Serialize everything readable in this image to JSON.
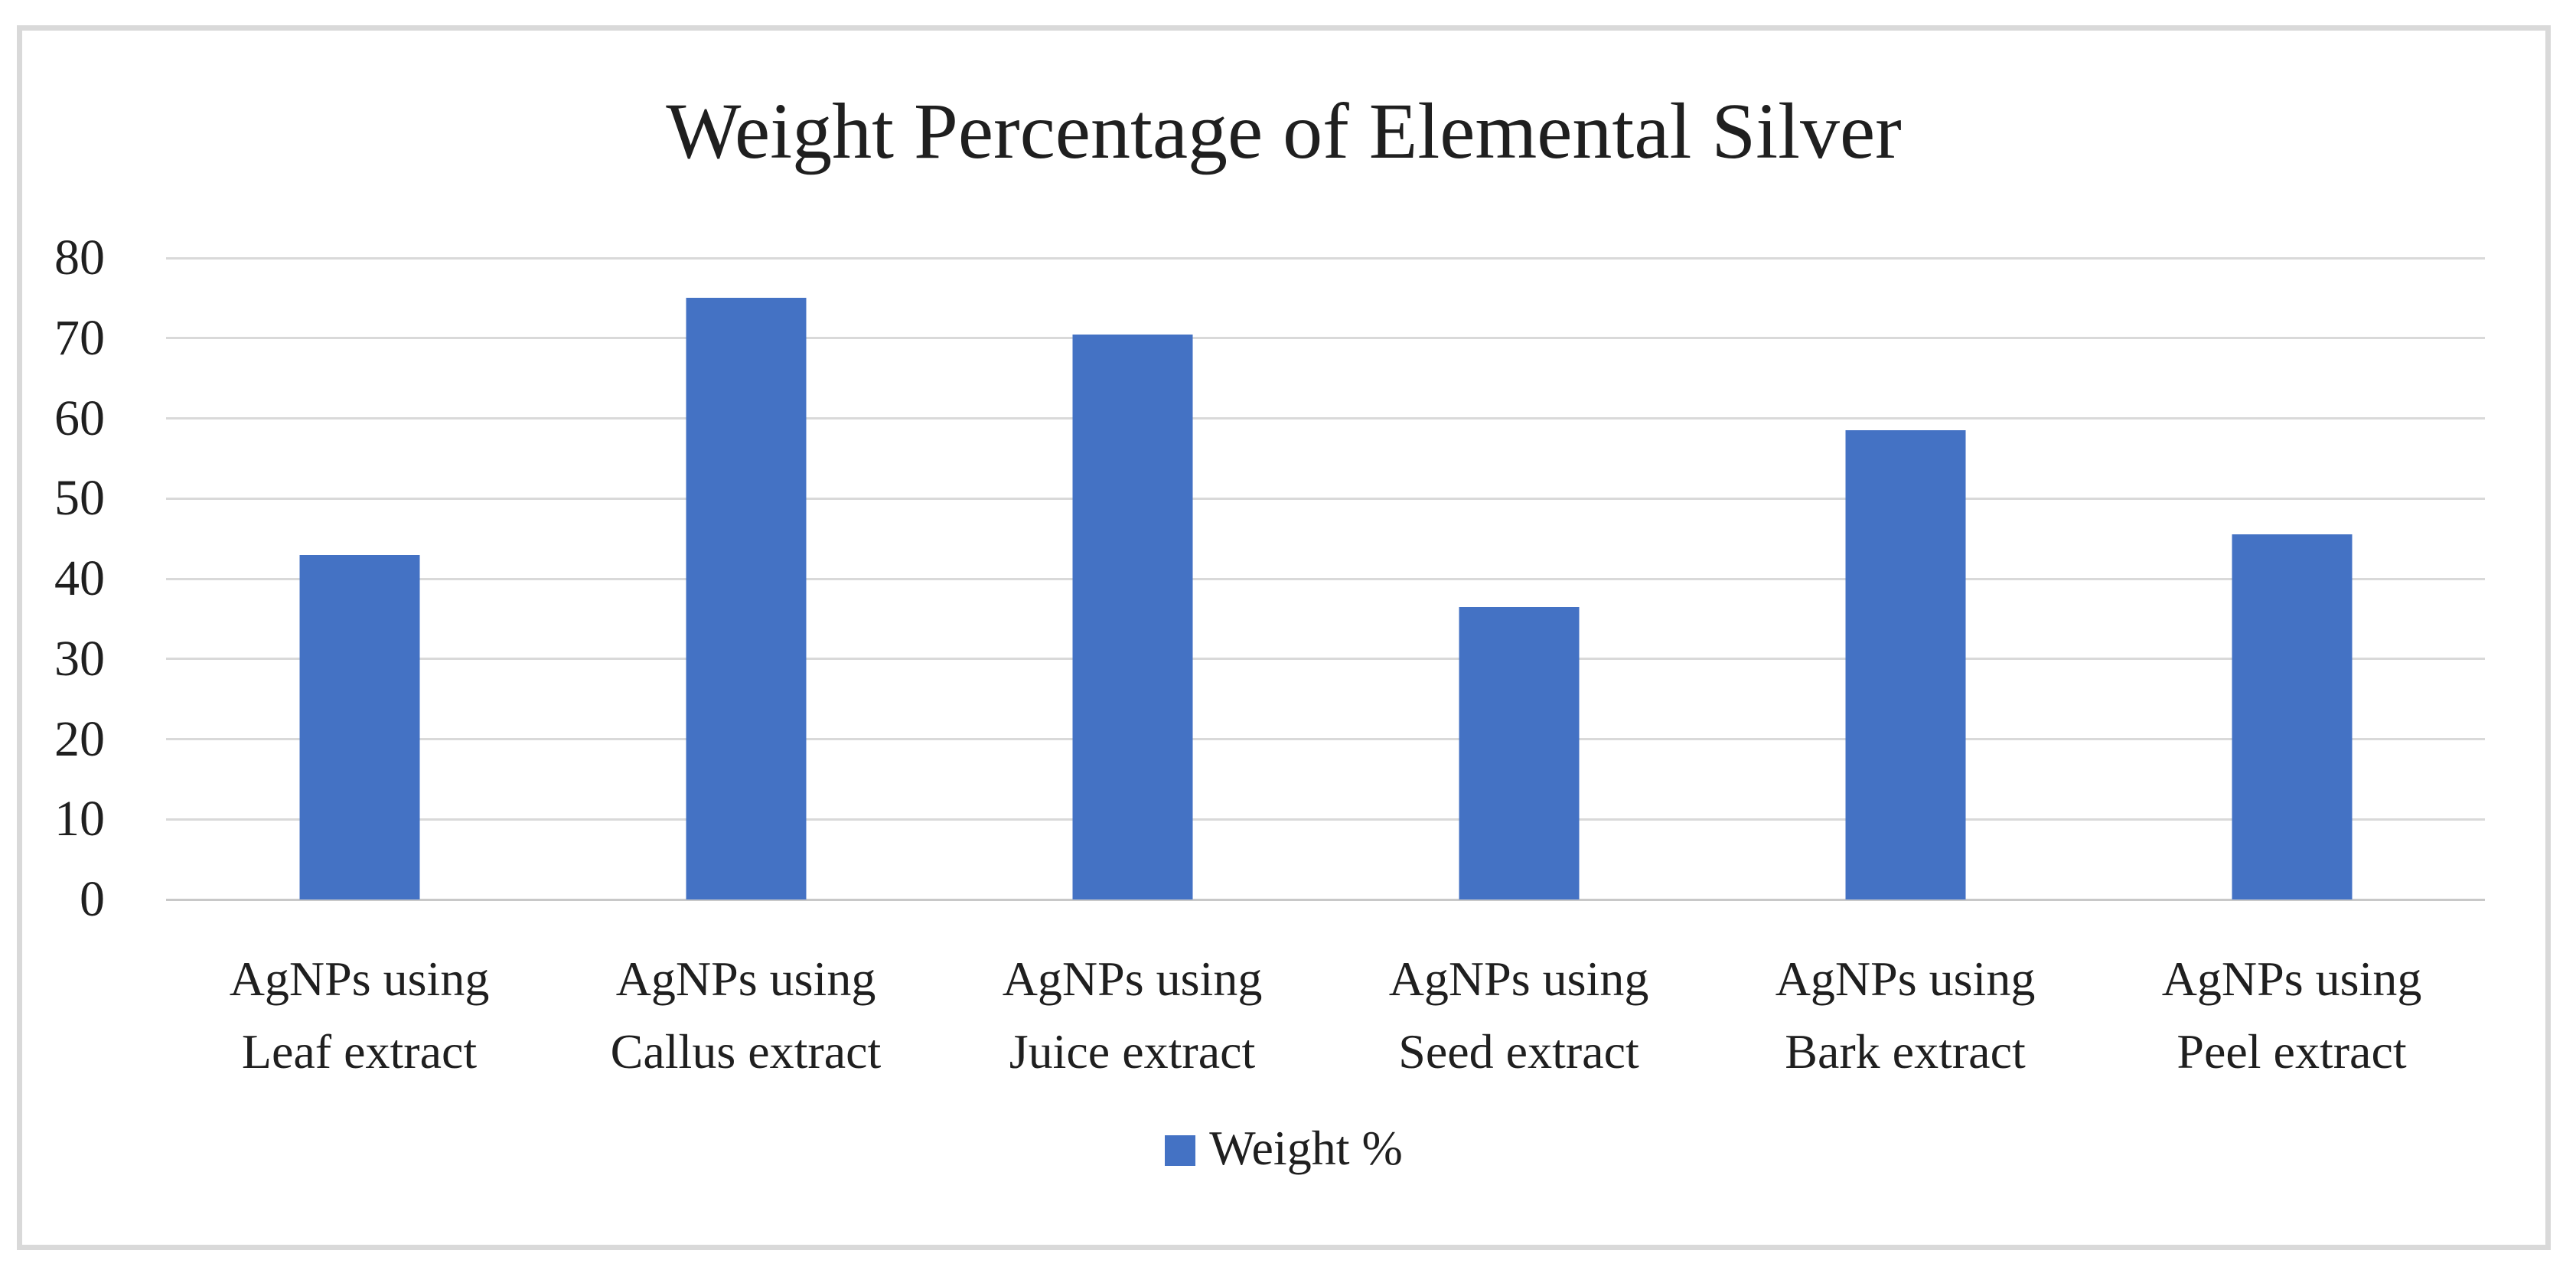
{
  "chart_data": {
    "type": "bar",
    "title": "Weight Percentage of Elemental Silver",
    "categories": [
      {
        "line1": "AgNPs using",
        "line2": "Leaf extract"
      },
      {
        "line1": "AgNPs using",
        "line2": "Callus extract"
      },
      {
        "line1": "AgNPs using",
        "line2": "Juice extract"
      },
      {
        "line1": "AgNPs using",
        "line2": "Seed extract"
      },
      {
        "line1": "AgNPs using",
        "line2": "Bark extract"
      },
      {
        "line1": "AgNPs using",
        "line2": "Peel extract"
      }
    ],
    "series": [
      {
        "name": "Weight %",
        "values": [
          43,
          75,
          70.5,
          36.5,
          58.5,
          45.5
        ]
      }
    ],
    "xlabel": "",
    "ylabel": "",
    "ylim": [
      0,
      80
    ],
    "yticks": [
      0,
      10,
      20,
      30,
      40,
      50,
      60,
      70,
      80
    ],
    "grid": "horizontal",
    "legend_position": "bottom",
    "colors": {
      "bar": "#4472C4",
      "gridline": "#D9D9D9",
      "axis_baseline": "#C8C8C8",
      "text": "#1F1F1F",
      "frame_border": "#D9D9D9",
      "background": "#FFFFFF"
    }
  }
}
